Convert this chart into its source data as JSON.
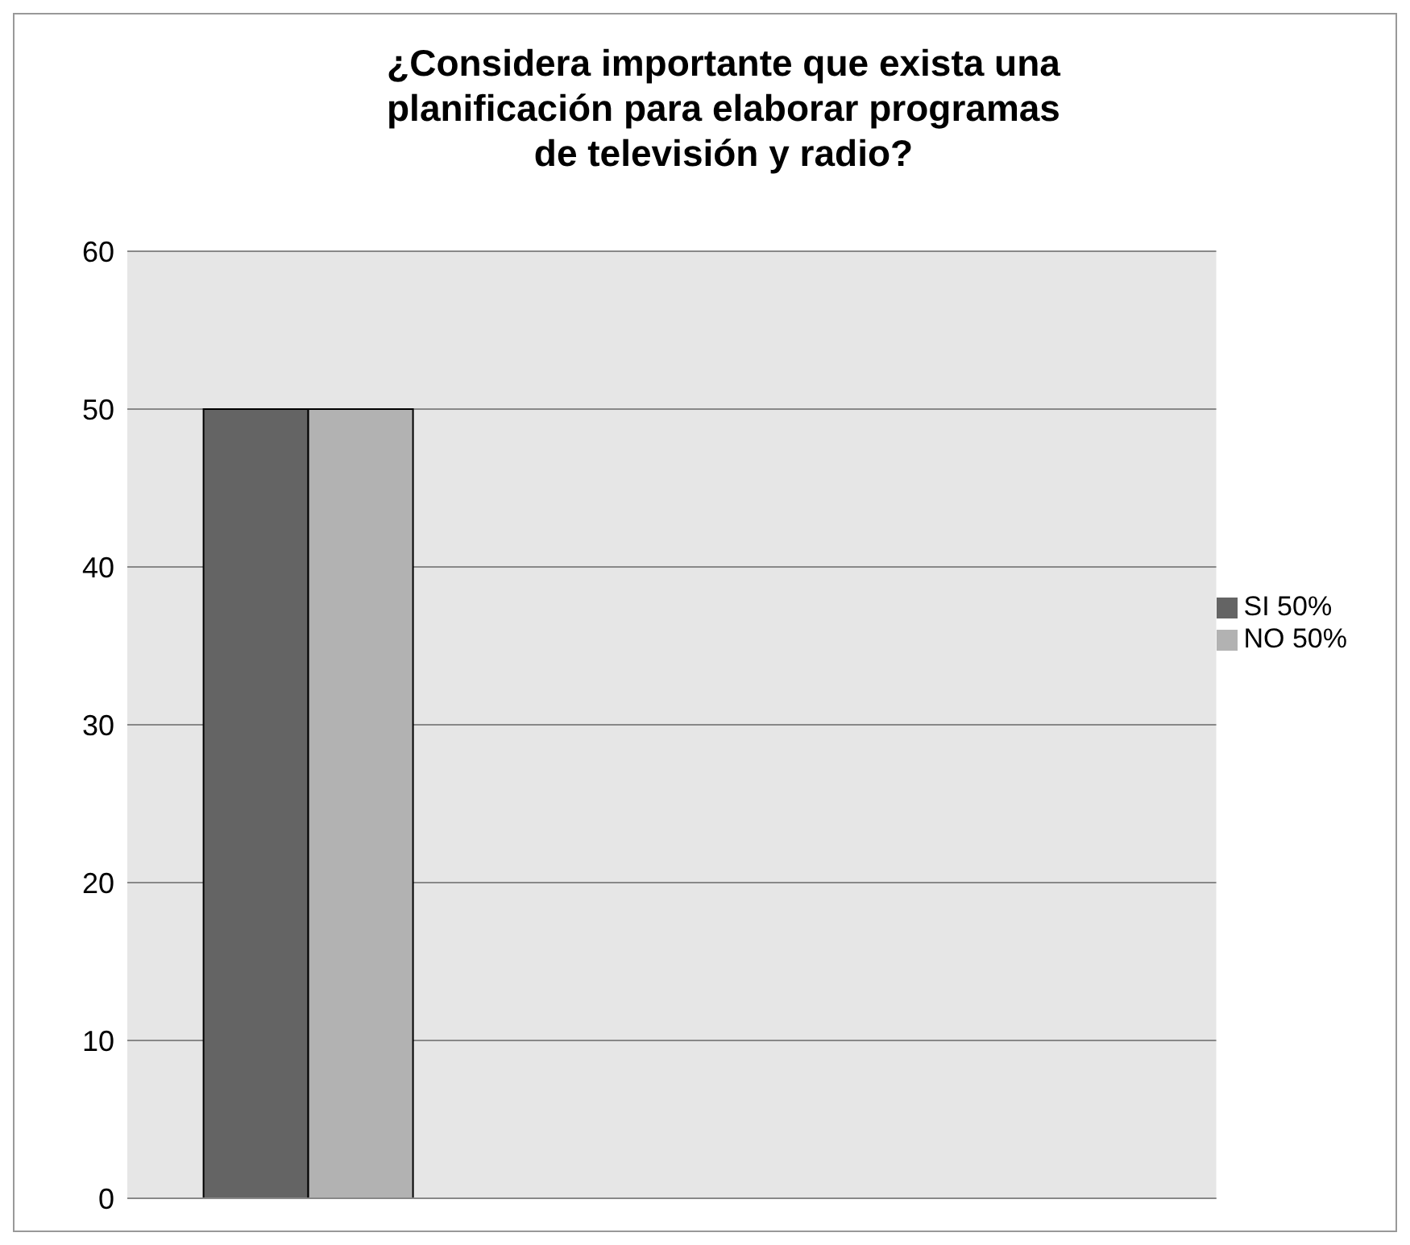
{
  "chart_data": {
    "type": "bar",
    "title": "¿Considera  importante que exista una planificación para elaborar programas de televisión y radio?",
    "categories": [
      null,
      null,
      null
    ],
    "series": [
      {
        "name": "SI 50%",
        "color": "#646464",
        "values": [
          50,
          null,
          null
        ]
      },
      {
        "name": "NO 50%",
        "color": "#b2b2b2",
        "values": [
          50,
          null,
          null
        ]
      }
    ],
    "ylim": [
      0,
      60
    ],
    "yticks": [
      0,
      10,
      20,
      30,
      40,
      50,
      60
    ],
    "grid": "y",
    "legend": "right",
    "tick_labels": "y"
  }
}
